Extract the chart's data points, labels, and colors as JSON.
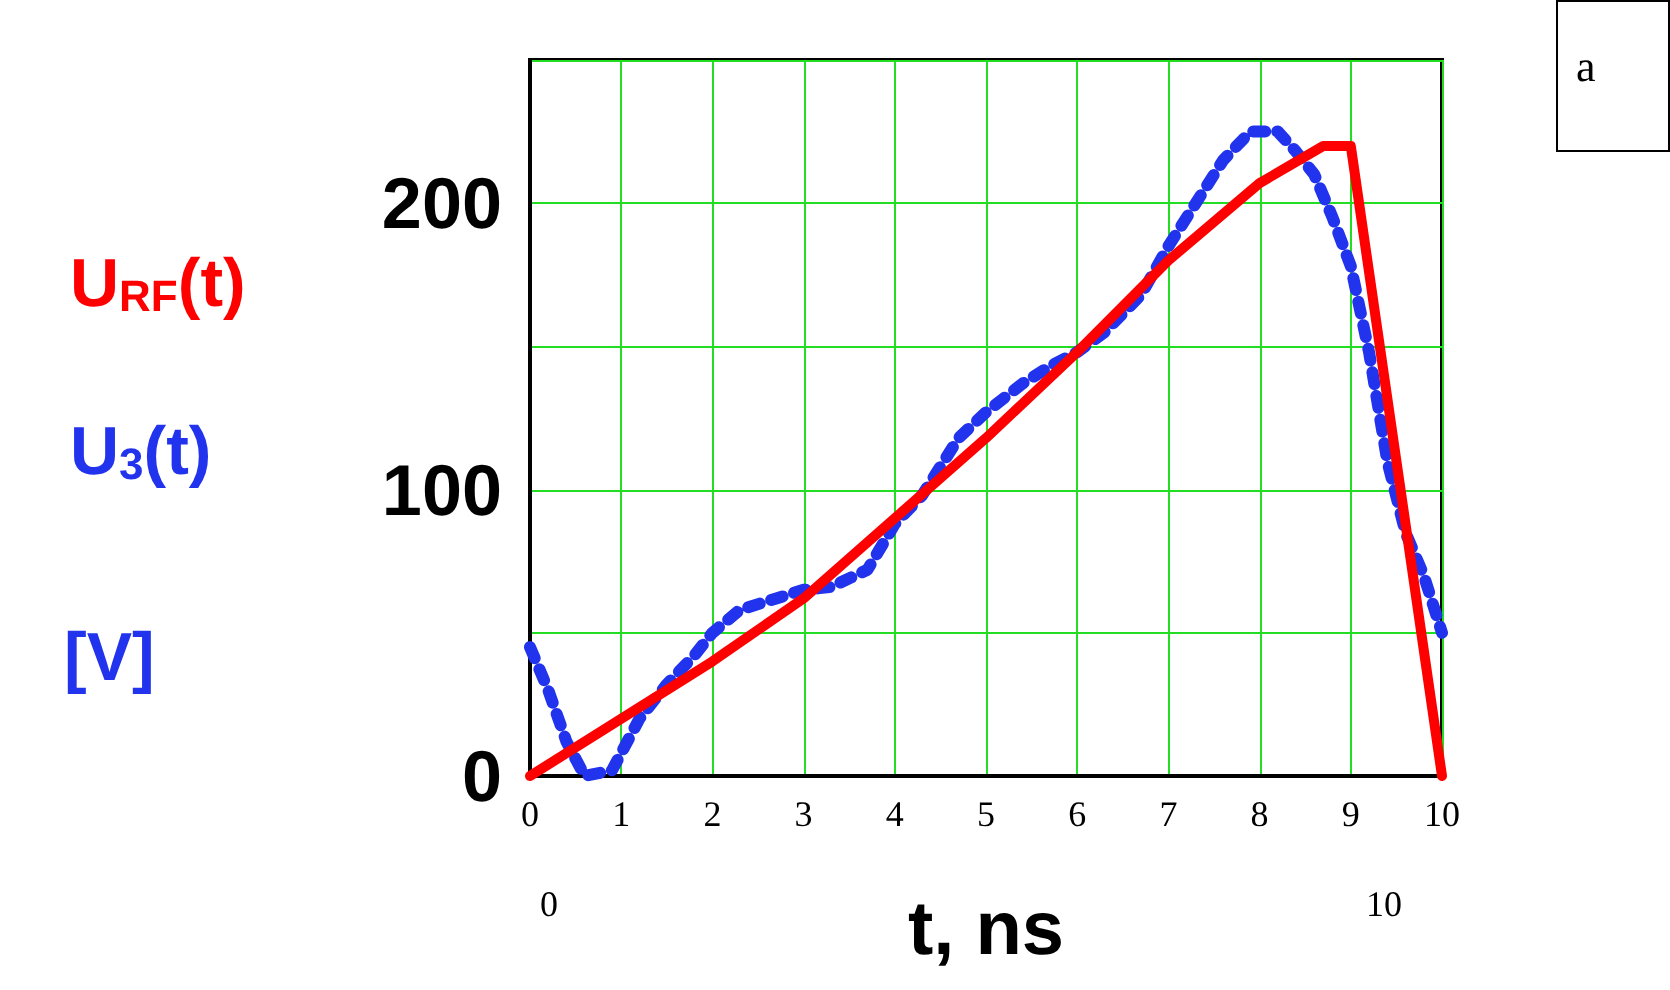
{
  "chart_data": {
    "type": "line",
    "xlabel": "t, ns",
    "ylabel": "[V]",
    "xlim": [
      0,
      10
    ],
    "xticks": [
      0,
      1,
      2,
      3,
      4,
      5,
      6,
      7,
      8,
      9,
      10
    ],
    "ylim": [
      0,
      250
    ],
    "yticks": [
      0,
      {
        "value": 50,
        "label": null
      },
      100,
      {
        "value": 150,
        "label": null
      },
      200,
      {
        "value": 250,
        "label": null
      }
    ],
    "grid": true,
    "legend": "left",
    "annotations": [
      "0",
      "10",
      "a"
    ],
    "series": [
      {
        "name": "U$_{RF}$(t)",
        "color": "#ff0000",
        "line_style": "solid",
        "x": [
          0,
          1,
          2,
          3,
          4,
          5,
          6,
          7,
          8,
          8.7,
          9,
          10
        ],
        "values": [
          0,
          20,
          40,
          62,
          90,
          118,
          148,
          180,
          207,
          220,
          220,
          0
        ]
      },
      {
        "name": "U$_{3}$(t)",
        "color": "#2233ee",
        "line_style": "dotted",
        "x": [
          0,
          0.2,
          0.4,
          0.6,
          0.9,
          1.2,
          1.5,
          1.8,
          2,
          2.3,
          2.7,
          3,
          3.3,
          3.7,
          4,
          4.3,
          4.7,
          5,
          5.4,
          5.7,
          6,
          6.3,
          6.7,
          7,
          7.3,
          7.6,
          7.9,
          8.2,
          8.4,
          8.6,
          8.8,
          9,
          9.2,
          9.4,
          9.6,
          9.8,
          10
        ],
        "values": [
          45,
          30,
          12,
          0,
          2,
          20,
          32,
          42,
          50,
          58,
          62,
          65,
          66,
          72,
          88,
          98,
          118,
          127,
          137,
          143,
          148,
          155,
          168,
          185,
          200,
          215,
          225,
          225,
          218,
          210,
          195,
          178,
          148,
          110,
          85,
          70,
          50
        ]
      }
    ]
  }
}
